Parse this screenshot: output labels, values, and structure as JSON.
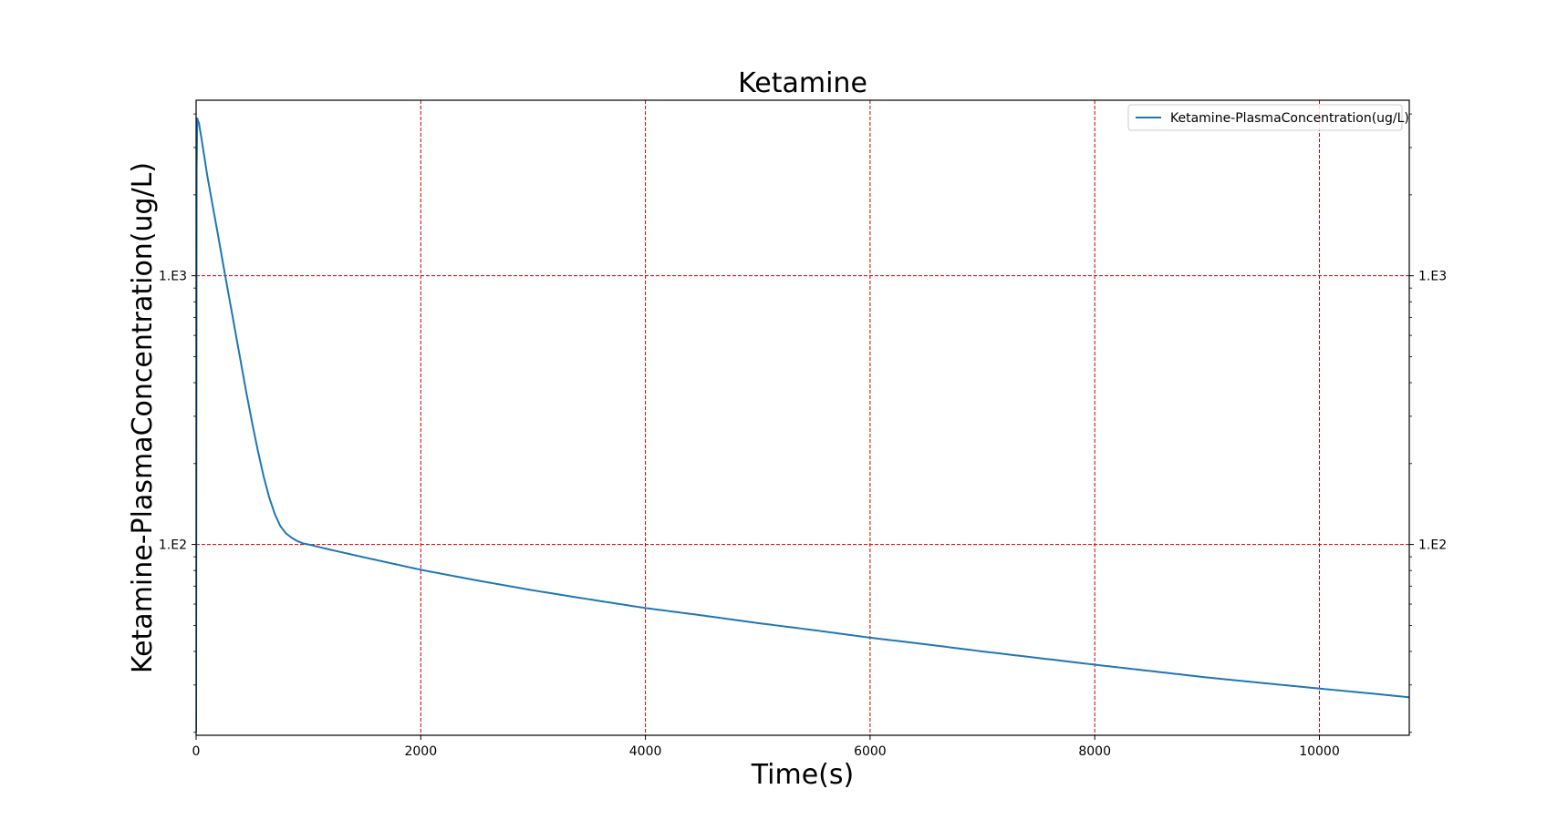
{
  "chart_data": {
    "type": "line",
    "title": "Ketamine",
    "xlabel": "Time(s)",
    "ylabel": "Ketamine-PlasmaConcentration(ug/L)",
    "xlim": [
      0,
      10800
    ],
    "ylim": [
      19.5,
      4500
    ],
    "yscale": "log",
    "x_ticks": [
      0,
      2000,
      4000,
      6000,
      8000,
      10000
    ],
    "x_tick_labels": [
      "0",
      "2000",
      "4000",
      "6000",
      "8000",
      "10000"
    ],
    "y_ticks": [
      100,
      1000
    ],
    "y_tick_labels": [
      "1.E2",
      "1.E3"
    ],
    "y_ticks_mirrored_right": true,
    "grid": true,
    "grid_color": "#cc0000",
    "grid_style": "dashed",
    "legend_position": "top-right",
    "series": [
      {
        "name": "Ketamine-PlasmaConcentration(ug/L)",
        "color": "#1f77b4",
        "x": [
          0,
          5,
          10,
          25,
          50,
          100,
          150,
          200,
          250,
          300,
          350,
          400,
          450,
          500,
          550,
          600,
          650,
          700,
          750,
          800,
          850,
          900,
          950,
          1000,
          1200,
          1500,
          2000,
          2500,
          3000,
          3500,
          4000,
          4500,
          5000,
          5500,
          6000,
          6500,
          7000,
          7500,
          8000,
          8500,
          9000,
          9500,
          10000,
          10500,
          10800
        ],
        "y": [
          20,
          2500,
          3850,
          3700,
          3200,
          2350,
          1800,
          1380,
          1050,
          805,
          617,
          472,
          362,
          282,
          223,
          180,
          150,
          130,
          117,
          110,
          106,
          103,
          101,
          100,
          95.5,
          89.5,
          80.5,
          73.5,
          67.5,
          62.5,
          58.0,
          54.5,
          51.0,
          48.0,
          45.0,
          42.5,
          40.0,
          37.8,
          35.7,
          33.8,
          32.0,
          30.5,
          29.1,
          27.8,
          27.0
        ]
      }
    ]
  }
}
